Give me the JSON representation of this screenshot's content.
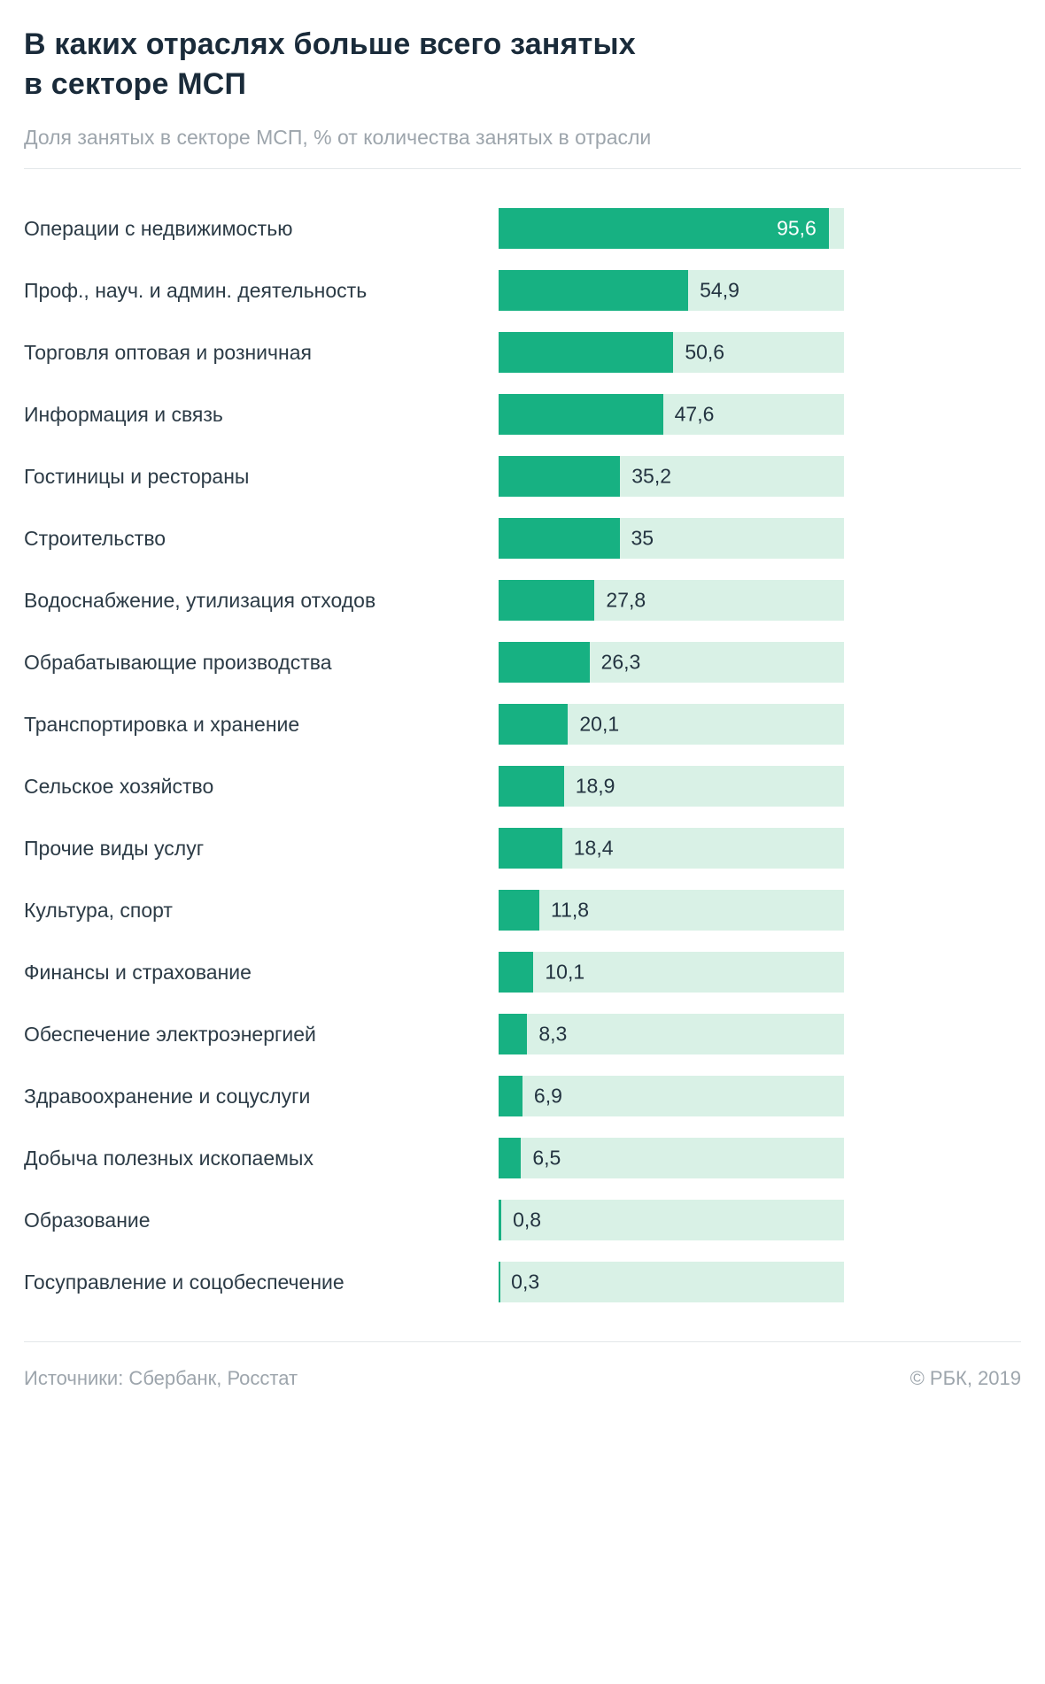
{
  "header": {
    "title_line1": "В каких отраслях больше всего занятых",
    "title_line2": "в секторе МСП",
    "subtitle": "Доля занятых в секторе МСП, % от количества занятых в отрасли"
  },
  "footer": {
    "sources": "Источники: Сбербанк, Росстат",
    "copyright": "© РБК, 2019"
  },
  "colors": {
    "bar": "#17B182",
    "track": "#D9F1E6",
    "title": "#1A2B3A",
    "muted": "#9DA5AC",
    "label": "#2C3B46",
    "value_inside": "#FFFFFF",
    "divider": "#E3E7E9"
  },
  "chart_data": {
    "type": "bar",
    "orientation": "horizontal",
    "title": "В каких отраслях больше всего занятых в секторе МСП",
    "subtitle": "Доля занятых в секторе МСП, % от количества занятых в отрасли",
    "unit": "%",
    "xlim": [
      0,
      100
    ],
    "grid": false,
    "legend": false,
    "categories": [
      "Операции с недвижимостью",
      "Проф., науч. и админ. деятельность",
      "Торговля оптовая и розничная",
      "Информация и связь",
      "Гостиницы и рестораны",
      "Строительство",
      "Водоснабжение, утилизация отходов",
      "Обрабатывающие производства",
      "Транспортировка и хранение",
      "Сельское хозяйство",
      "Прочие виды услуг",
      "Культура, спорт",
      "Финансы и страхование",
      "Обеспечение электроэнергией",
      "Здравоохранение и соцуслуги",
      "Добыча полезных ископаемых",
      "Образование",
      "Госуправление и соцобеспечение"
    ],
    "values": [
      95.6,
      54.9,
      50.6,
      47.6,
      35.2,
      35,
      27.8,
      26.3,
      20.1,
      18.9,
      18.4,
      11.8,
      10.1,
      8.3,
      6.9,
      6.5,
      0.8,
      0.3
    ],
    "value_labels": [
      "95,6",
      "54,9",
      "50,6",
      "47,6",
      "35,2",
      "35",
      "27,8",
      "26,3",
      "20,1",
      "18,9",
      "18,4",
      "11,8",
      "10,1",
      "8,3",
      "6,9",
      "6,5",
      "0,8",
      "0,3"
    ]
  }
}
